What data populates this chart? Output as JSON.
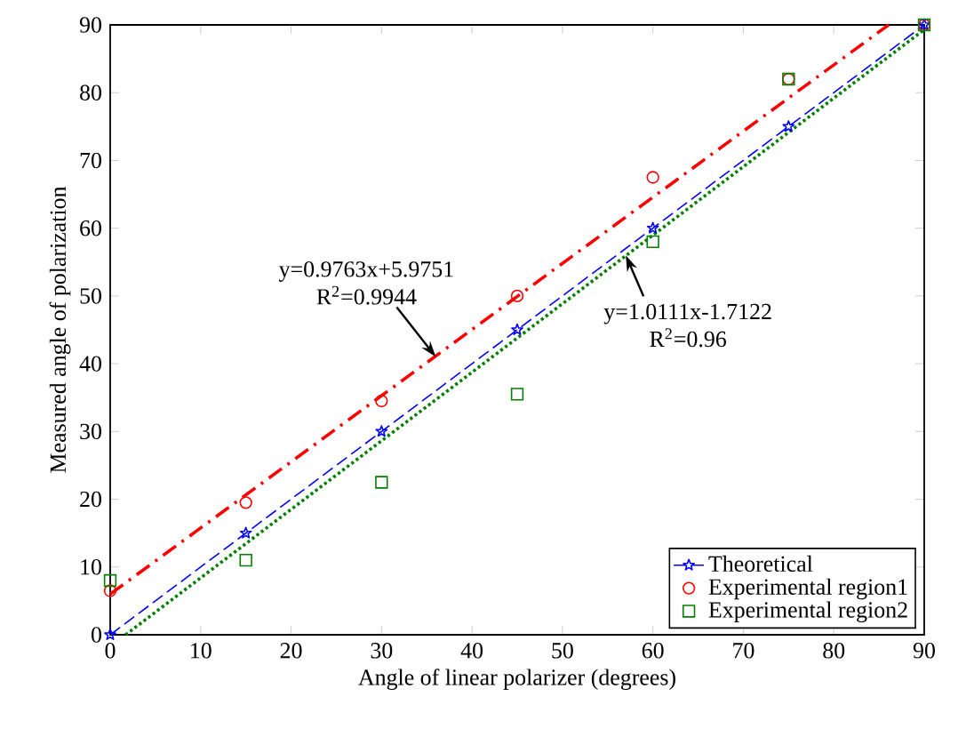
{
  "chart_data": {
    "type": "scatter",
    "xlabel": "Angle of linear polarizer (degrees)",
    "ylabel": "Measured angle of polarization",
    "xlim": [
      0,
      90
    ],
    "ylim": [
      0,
      90
    ],
    "xticks": [
      0,
      10,
      20,
      30,
      40,
      50,
      60,
      70,
      80,
      90
    ],
    "yticks": [
      0,
      10,
      20,
      30,
      40,
      50,
      60,
      70,
      80,
      90
    ],
    "legend": "bottom right",
    "grid": false,
    "series": [
      {
        "name": "Theoretical",
        "type": "line",
        "color": "#0000ff",
        "marker": "star",
        "line_style": "dashed",
        "x": [
          0,
          15,
          30,
          45,
          60,
          75,
          90
        ],
        "values": [
          0,
          15,
          30,
          45,
          60,
          75,
          90
        ]
      },
      {
        "name": "Experimental region1",
        "type": "scatter",
        "color": "#ff0000",
        "marker": "circle",
        "x": [
          0,
          15,
          30,
          45,
          60,
          75,
          90
        ],
        "values": [
          6.5,
          19.5,
          34.5,
          50,
          67.5,
          82,
          90
        ]
      },
      {
        "name": "Experimental region2",
        "type": "scatter",
        "color": "#008000",
        "marker": "square",
        "x": [
          0,
          15,
          30,
          45,
          60,
          75,
          90
        ],
        "values": [
          8,
          11,
          22.5,
          35.5,
          58,
          82,
          90
        ]
      },
      {
        "type": "line",
        "color": "#ff0000",
        "marker": "none",
        "line_style": "dashdot",
        "x": [
          0,
          86.06
        ],
        "values": [
          6,
          90
        ]
      },
      {
        "type": "line",
        "color": "#008000",
        "marker": "none",
        "line_style": "dotted",
        "x": [
          1.7,
          90
        ],
        "values": [
          0,
          89.3
        ]
      }
    ],
    "annotations": [
      {
        "text": "y=0.9763x+5.9751",
        "x": 36,
        "y": 41
      },
      "R$^{2}$=0.9944",
      {
        "text": "y=1.0111x-1.7122",
        "x": 57,
        "y": 56
      },
      "R$^{2}$=0.96"
    ]
  }
}
